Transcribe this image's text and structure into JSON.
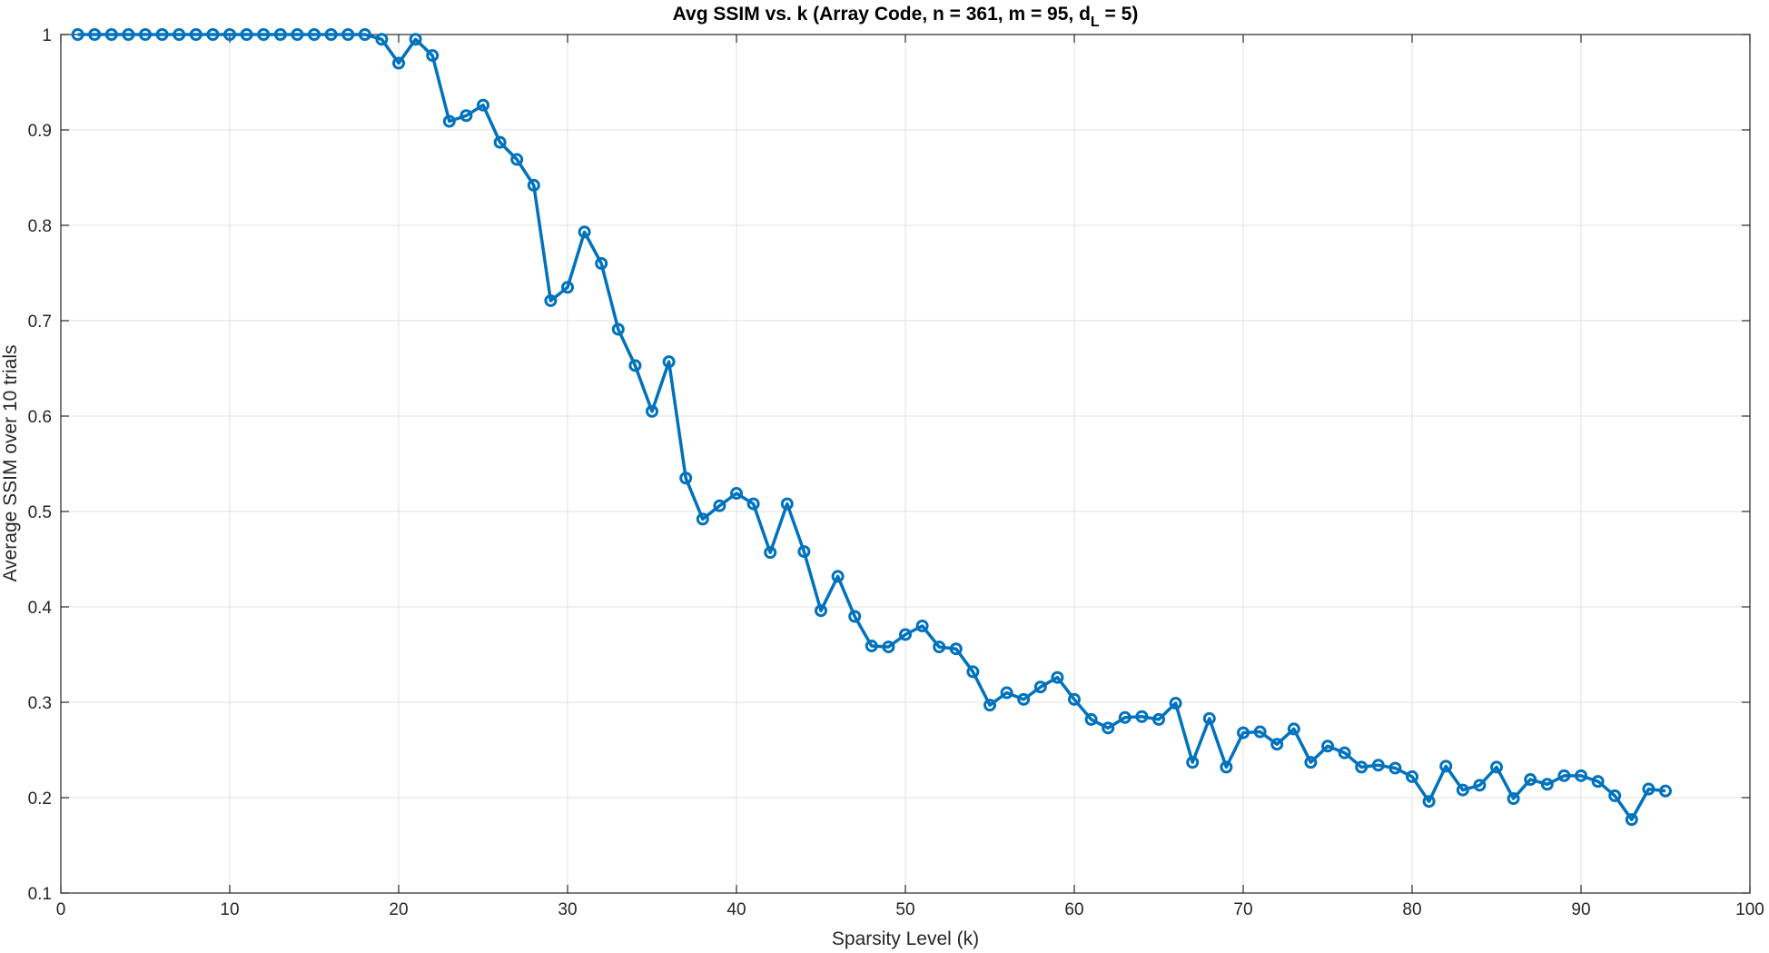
{
  "chart_data": {
    "type": "line",
    "title": {
      "prefix": "Avg SSIM vs. k (Array Code, n = 361, m = 95, d",
      "subscript": "L",
      "suffix": " = 5)"
    },
    "xlabel": "Sparsity Level (k)",
    "ylabel": "Average SSIM over 10 trials",
    "xlim": [
      0,
      100
    ],
    "ylim": [
      0.1,
      1
    ],
    "xticks": [
      0,
      10,
      20,
      30,
      40,
      50,
      60,
      70,
      80,
      90,
      100
    ],
    "yticks": [
      0.1,
      0.2,
      0.3,
      0.4,
      0.5,
      0.6,
      0.7,
      0.8,
      0.9,
      1
    ],
    "grid": true,
    "marker": "circle",
    "color": "#0072BD",
    "series": [
      {
        "x": [
          1,
          2,
          3,
          4,
          5,
          6,
          7,
          8,
          9,
          10,
          11,
          12,
          13,
          14,
          15,
          16,
          17,
          18,
          19,
          20,
          21,
          22,
          23,
          24,
          25,
          26,
          27,
          28,
          29,
          30,
          31,
          32,
          33,
          34,
          35,
          36,
          37,
          38,
          39,
          40,
          41,
          42,
          43,
          44,
          45,
          46,
          47,
          48,
          49,
          50,
          51,
          52,
          53,
          54,
          55,
          56,
          57,
          58,
          59,
          60,
          61,
          62,
          63,
          64,
          65,
          66,
          67,
          68,
          69,
          70,
          71,
          72,
          73,
          74,
          75,
          76,
          77,
          78,
          79,
          80,
          81,
          82,
          83,
          84,
          85,
          86,
          87,
          88,
          89,
          90,
          91,
          92,
          93,
          94,
          95
        ],
        "values": [
          1,
          1,
          1,
          1,
          1,
          1,
          1,
          1,
          1,
          1,
          1,
          1,
          1,
          1,
          1,
          1,
          1,
          1,
          0.995,
          0.97,
          0.995,
          0.978,
          0.909,
          0.915,
          0.926,
          0.887,
          0.869,
          0.842,
          0.721,
          0.735,
          0.793,
          0.76,
          0.691,
          0.653,
          0.605,
          0.657,
          0.535,
          0.492,
          0.506,
          0.519,
          0.508,
          0.457,
          0.508,
          0.458,
          0.396,
          0.432,
          0.39,
          0.359,
          0.358,
          0.371,
          0.38,
          0.358,
          0.356,
          0.332,
          0.297,
          0.31,
          0.303,
          0.316,
          0.326,
          0.303,
          0.282,
          0.273,
          0.284,
          0.285,
          0.282,
          0.299,
          0.237,
          0.283,
          0.232,
          0.268,
          0.269,
          0.256,
          0.272,
          0.237,
          0.254,
          0.247,
          0.232,
          0.234,
          0.231,
          0.222,
          0.196,
          0.233,
          0.208,
          0.213,
          0.232,
          0.199,
          0.219,
          0.214,
          0.223,
          0.223,
          0.217,
          0.202,
          0.177,
          0.209,
          0.207
        ]
      }
    ]
  }
}
